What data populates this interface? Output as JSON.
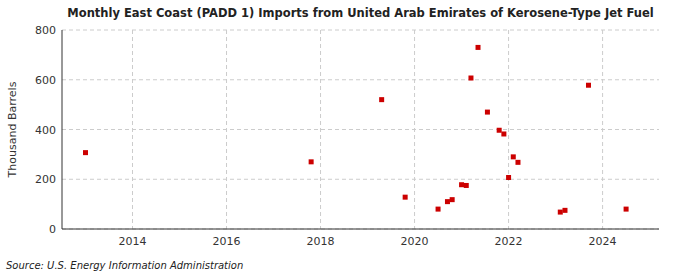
{
  "chart_data": {
    "type": "scatter",
    "title": "Monthly East Coast (PADD 1) Imports from United Arab Emirates of Kerosene-Type Jet Fuel",
    "ylabel": "Thousand Barrels",
    "source": "Source: U.S. Energy Information Administration",
    "color": "#cc0000",
    "marker": "square",
    "grid": true,
    "xlim": [
      2012.5,
      2025.2
    ],
    "ylim": [
      0,
      800
    ],
    "xticks": [
      2014,
      2016,
      2018,
      2020,
      2022,
      2024
    ],
    "yticks": [
      0,
      200,
      400,
      600,
      800
    ],
    "x": [
      2013.0,
      2017.8,
      2019.3,
      2019.8,
      2020.5,
      2020.7,
      2020.8,
      2021.0,
      2021.1,
      2021.2,
      2021.35,
      2021.55,
      2021.8,
      2021.9,
      2022.0,
      2022.1,
      2022.2,
      2023.1,
      2023.2,
      2023.7,
      2024.5
    ],
    "values": [
      307,
      270,
      520,
      128,
      80,
      110,
      118,
      178,
      175,
      607,
      730,
      470,
      397,
      382,
      207,
      290,
      268,
      68,
      75,
      578,
      80
    ]
  }
}
